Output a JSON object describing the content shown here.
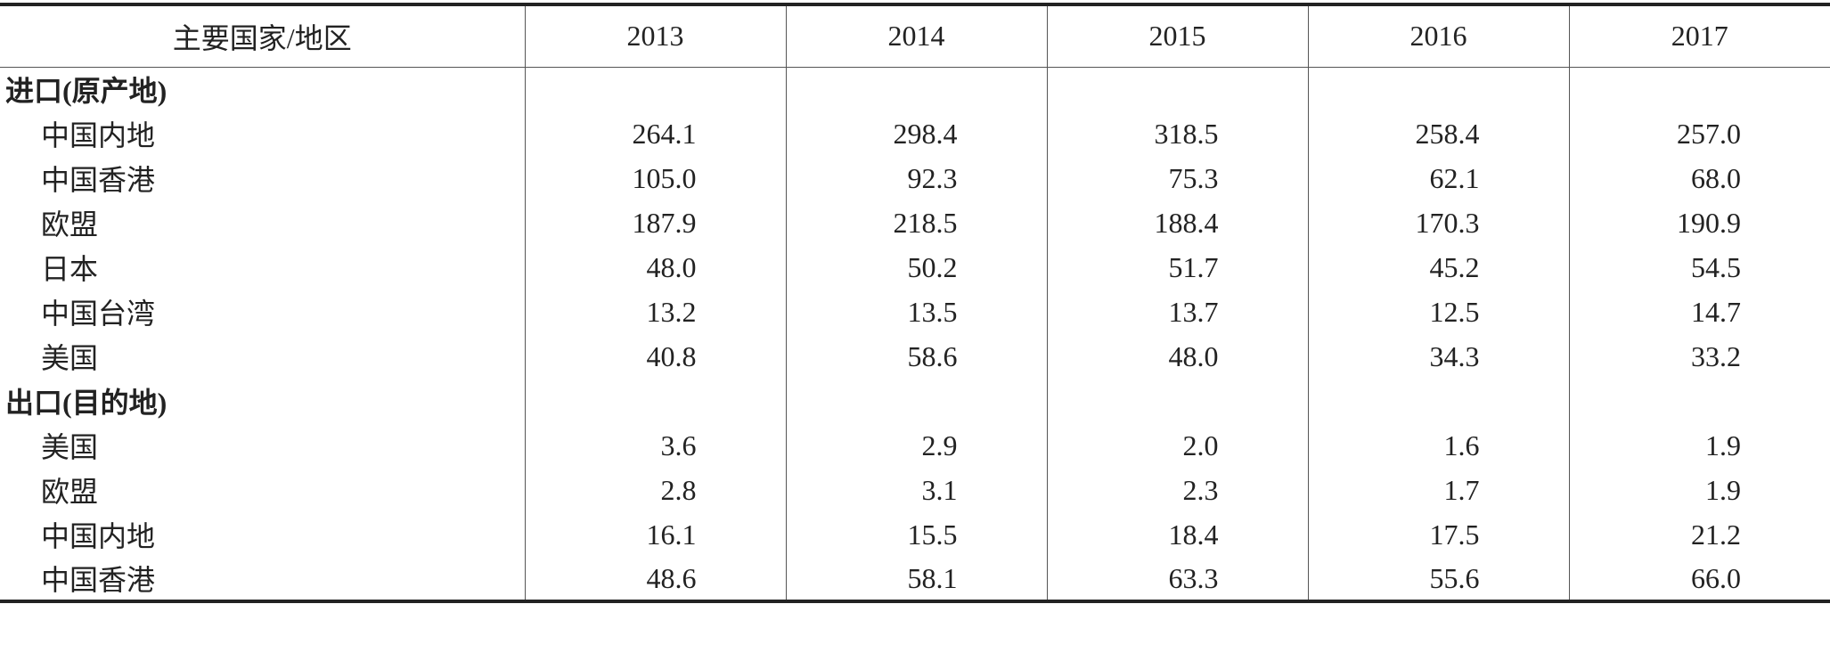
{
  "table": {
    "header": [
      "主要国家/地区",
      "2013",
      "2014",
      "2015",
      "2016",
      "2017"
    ],
    "sections": [
      {
        "label": "进口(原产地)",
        "rows": [
          {
            "name": "中国内地",
            "values": [
              "264.1",
              "298.4",
              "318.5",
              "258.4",
              "257.0"
            ]
          },
          {
            "name": "中国香港",
            "values": [
              "105.0",
              "92.3",
              "75.3",
              "62.1",
              "68.0"
            ]
          },
          {
            "name": "欧盟",
            "values": [
              "187.9",
              "218.5",
              "188.4",
              "170.3",
              "190.9"
            ]
          },
          {
            "name": "日本",
            "values": [
              "48.0",
              "50.2",
              "51.7",
              "45.2",
              "54.5"
            ]
          },
          {
            "name": "中国台湾",
            "values": [
              "13.2",
              "13.5",
              "13.7",
              "12.5",
              "14.7"
            ]
          },
          {
            "name": "美国",
            "values": [
              "40.8",
              "58.6",
              "48.0",
              "34.3",
              "33.2"
            ]
          }
        ]
      },
      {
        "label": "出口(目的地)",
        "rows": [
          {
            "name": "美国",
            "values": [
              "3.6",
              "2.9",
              "2.0",
              "1.6",
              "1.9"
            ]
          },
          {
            "name": "欧盟",
            "values": [
              "2.8",
              "3.1",
              "2.3",
              "1.7",
              "1.9"
            ]
          },
          {
            "name": "中国内地",
            "values": [
              "16.1",
              "15.5",
              "18.4",
              "17.5",
              "21.2"
            ]
          },
          {
            "name": "中国香港",
            "values": [
              "48.6",
              "58.1",
              "63.3",
              "55.6",
              "66.0"
            ]
          }
        ]
      }
    ]
  }
}
